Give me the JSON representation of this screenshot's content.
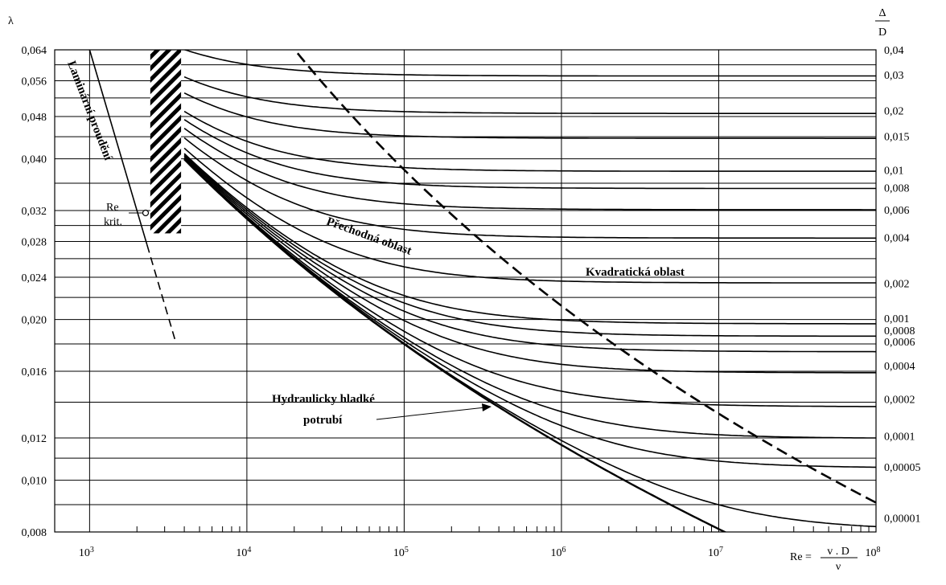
{
  "chart_data": {
    "type": "line",
    "title": "",
    "ylabel": "λ",
    "rlabel_top": "Δ",
    "rlabel_bottom": "D",
    "xlabel_lhs": "Re =",
    "xlabel_num": "v . D",
    "xlabel_den": "ν",
    "x_scale": "log",
    "y_scale": "log",
    "xlim": [
      600,
      100000000
    ],
    "ylim": [
      0.008,
      0.064
    ],
    "grid": true,
    "x_ticks": [
      {
        "value": 1000,
        "base": "10",
        "exp": "3"
      },
      {
        "value": 10000,
        "base": "10",
        "exp": "4"
      },
      {
        "value": 100000,
        "base": "10",
        "exp": "5"
      },
      {
        "value": 1000000,
        "base": "10",
        "exp": "6"
      },
      {
        "value": 10000000,
        "base": "10",
        "exp": "7"
      },
      {
        "value": 100000000,
        "base": "10",
        "exp": "8"
      }
    ],
    "y_ticks": [
      {
        "value": 0.008,
        "label": "0,008"
      },
      {
        "value": 0.01,
        "label": "0,010"
      },
      {
        "value": 0.012,
        "label": "0,012"
      },
      {
        "value": 0.016,
        "label": "0,016"
      },
      {
        "value": 0.02,
        "label": "0,020"
      },
      {
        "value": 0.024,
        "label": "0,024"
      },
      {
        "value": 0.028,
        "label": "0,028"
      },
      {
        "value": 0.032,
        "label": "0,032"
      },
      {
        "value": 0.04,
        "label": "0,040"
      },
      {
        "value": 0.048,
        "label": "0,048"
      },
      {
        "value": 0.056,
        "label": "0,056"
      },
      {
        "value": 0.064,
        "label": "0,064"
      }
    ],
    "y_grid_values": [
      0.008,
      0.009,
      0.01,
      0.011,
      0.012,
      0.014,
      0.016,
      0.018,
      0.02,
      0.022,
      0.024,
      0.026,
      0.028,
      0.03,
      0.032,
      0.036,
      0.04,
      0.044,
      0.048,
      0.052,
      0.056,
      0.06,
      0.064
    ],
    "right_labels": [
      {
        "text": "0,04",
        "lambda": 0.064
      },
      {
        "text": "0,03",
        "lambda": 0.0575
      },
      {
        "text": "0,02",
        "lambda": 0.0493
      },
      {
        "text": "0,015",
        "lambda": 0.0441
      },
      {
        "text": "0,01",
        "lambda": 0.0381
      },
      {
        "text": "0,008",
        "lambda": 0.0353
      },
      {
        "text": "0,006",
        "lambda": 0.0321
      },
      {
        "text": "0,004",
        "lambda": 0.0285
      },
      {
        "text": "0,002",
        "lambda": 0.0234
      },
      {
        "text": "0,001",
        "lambda": 0.0201
      },
      {
        "text": "0,0008",
        "lambda": 0.0191
      },
      {
        "text": "0,0006",
        "lambda": 0.0182
      },
      {
        "text": "0,0004",
        "lambda": 0.0164
      },
      {
        "text": "0,0002",
        "lambda": 0.0142
      },
      {
        "text": "0,0001",
        "lambda": 0.0121
      },
      {
        "text": "0,00005",
        "lambda": 0.0106
      },
      {
        "text": "0,00001",
        "lambda": 0.0085
      }
    ],
    "relative_roughness": [
      0.04,
      0.03,
      0.02,
      0.015,
      0.01,
      0.008,
      0.006,
      0.004,
      0.002,
      0.001,
      0.0008,
      0.0006,
      0.0004,
      0.0002,
      0.0001,
      5e-05,
      1e-05
    ],
    "curve_start_re": 4000,
    "laminar": {
      "formula": "64/Re",
      "solid_re": [
        1000,
        2320
      ],
      "dashed_re": [
        2320,
        3500
      ]
    },
    "critical_re": 2320,
    "hatch_band_re": [
      2320,
      4000
    ],
    "transition_boundary": {
      "formula": "Re = 200 / (sqrt(λ) · Δ/D)",
      "style": "dashed"
    },
    "annotations": {
      "laminar": "Laminární proudění",
      "re_krit_1": "Re",
      "re_krit_2": "krit.",
      "transition": "Přechodná oblast",
      "quadratic": "Kvadratická oblast",
      "smooth_1": "Hydraulicky hladké",
      "smooth_2": "potrubí"
    },
    "colors": {
      "line": "#000000",
      "grid": "#000000",
      "background": "#ffffff"
    }
  }
}
